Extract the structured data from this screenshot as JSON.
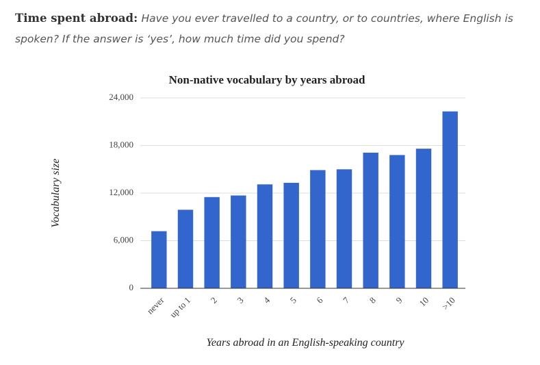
{
  "header": {
    "lead": "Time spent abroad:",
    "question": "Have you ever travelled to a country, or to countries, where English is spoken? If the answer is ‘yes’, how much time did you spend?"
  },
  "chart_data": {
    "type": "bar",
    "title": "Non-native vocabulary by years abroad",
    "x_label": "Years abroad in an English-speaking country",
    "y_label": "Vocabulary size",
    "categories": [
      "never",
      "up to 1",
      "2",
      "3",
      "4",
      "5",
      "6",
      "7",
      "8",
      "9",
      "10",
      ">10"
    ],
    "values": [
      7200,
      9900,
      11500,
      11700,
      13100,
      13300,
      14900,
      15000,
      17100,
      16800,
      17600,
      22300
    ],
    "color": "#3366cc",
    "ylim": [
      0,
      24000
    ],
    "yticks": [
      0,
      {
        "value": 6000,
        "label": "6,000"
      },
      {
        "value": 12000,
        "label": "12,000"
      },
      {
        "value": 18000,
        "label": "18,000"
      },
      {
        "value": 24000,
        "label": "24,000"
      }
    ],
    "grid": true
  }
}
